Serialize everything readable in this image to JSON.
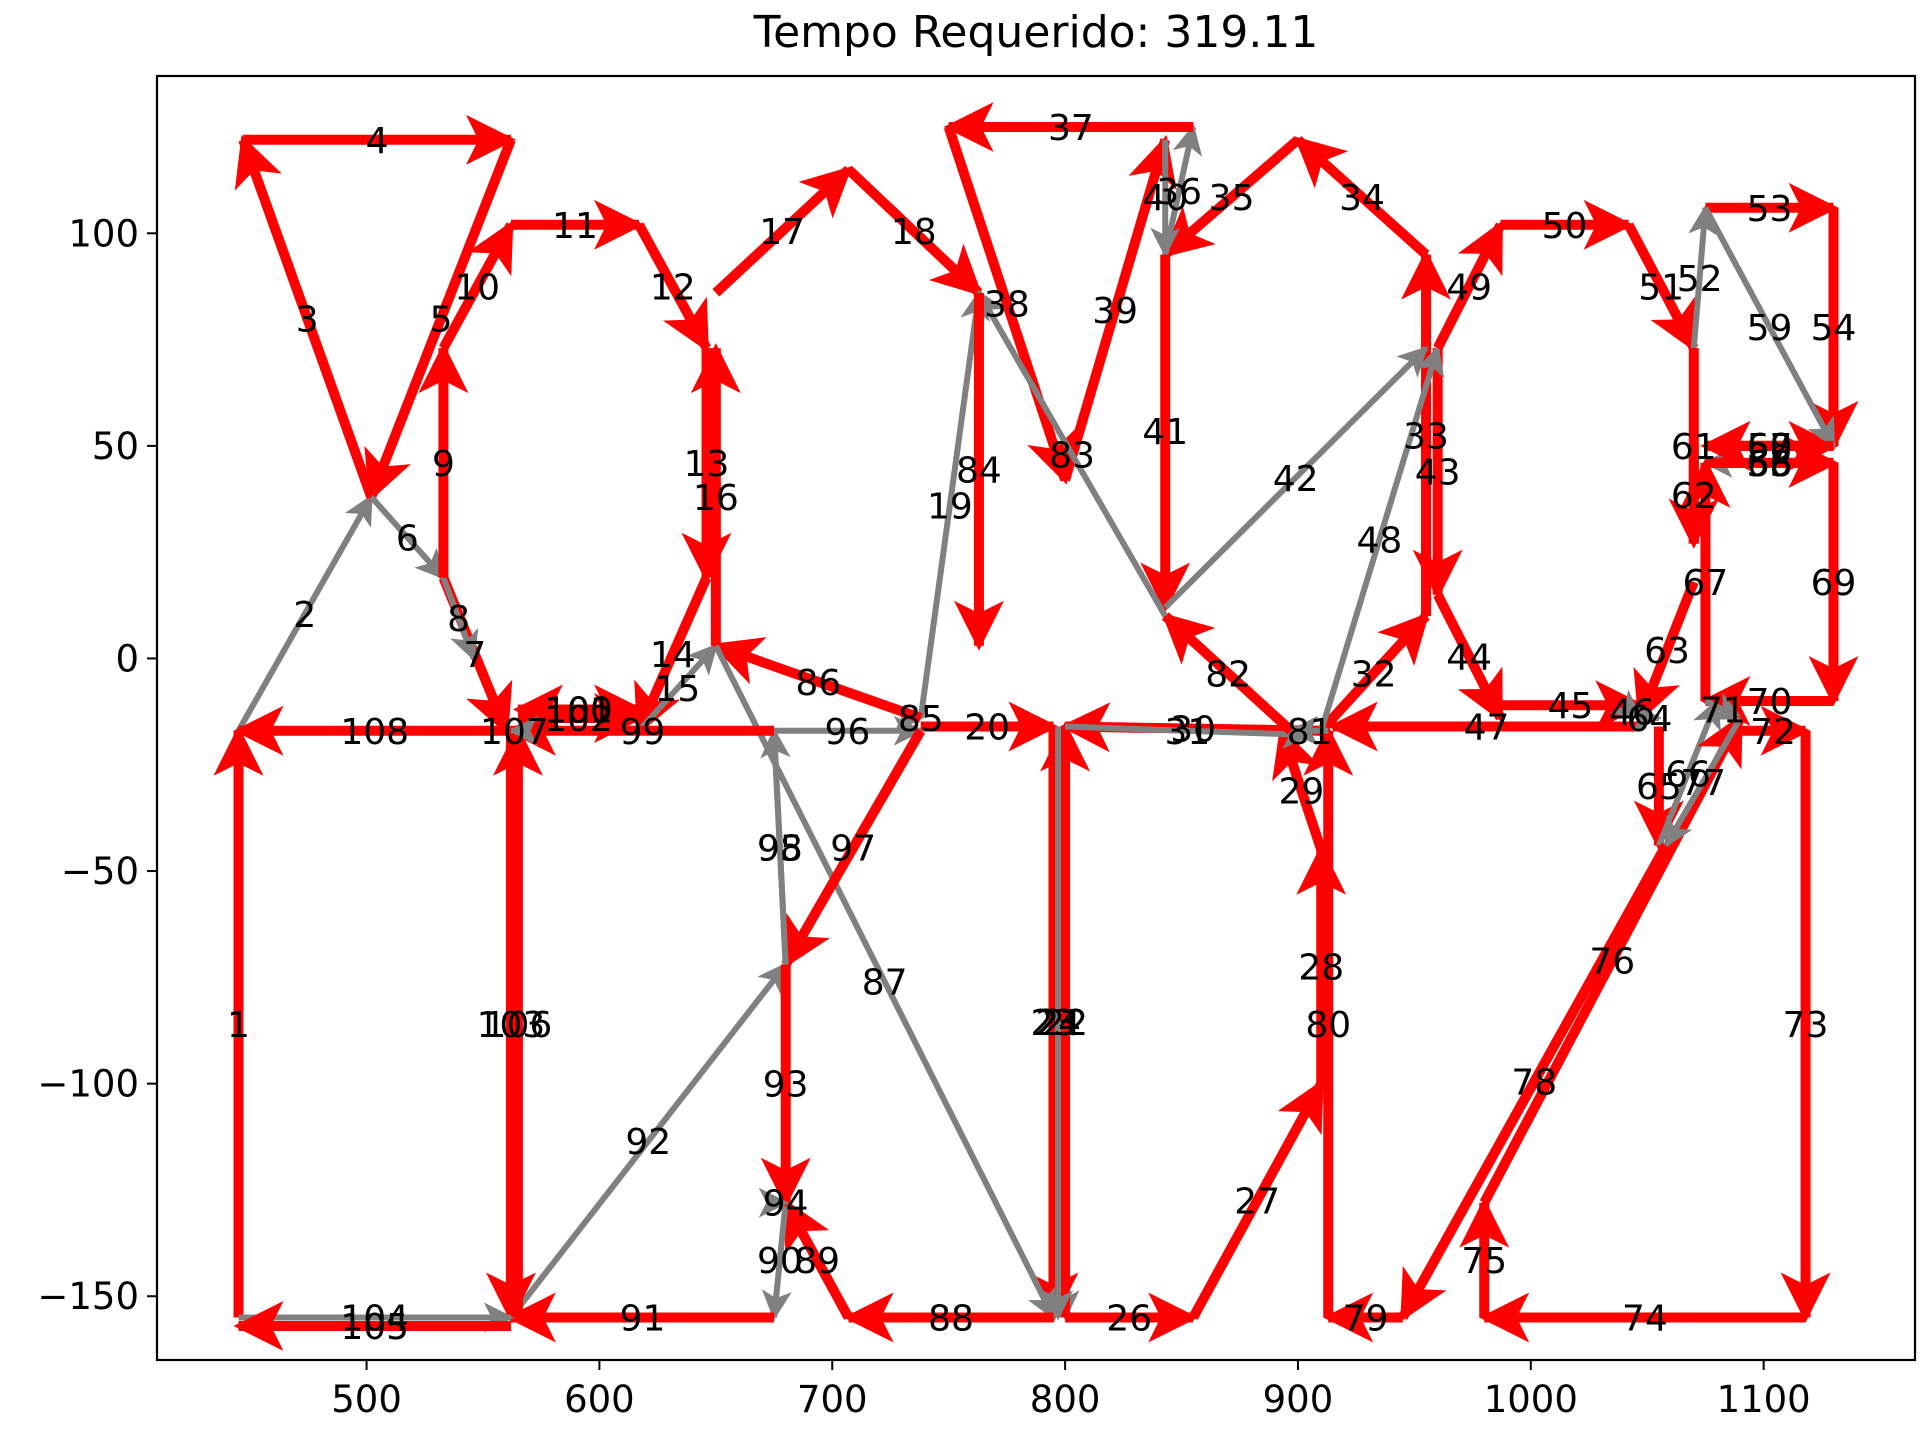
{
  "chart_data": {
    "type": "line",
    "title": "Tempo Requerido: 319.11",
    "xlabel": "",
    "ylabel": "",
    "xlim": [
      410,
      1165
    ],
    "ylim": [
      -165,
      137
    ],
    "xticks": [
      500,
      600,
      700,
      800,
      900,
      1000,
      1100
    ],
    "xtick_labels": [
      "500",
      "600",
      "700",
      "800",
      "900",
      "1000",
      "1100"
    ],
    "yticks": [
      100,
      50,
      0,
      -50,
      -100,
      -150
    ],
    "ytick_labels": [
      "100",
      "50",
      "0",
      "−50",
      "−100",
      "−150"
    ],
    "grid": false,
    "colors": {
      "work": "#ff0000",
      "transit": "#808080"
    },
    "segments": [
      {
        "n": "1",
        "x1": 445,
        "y1": -155,
        "x2": 445,
        "y2": -17,
        "kind": "work"
      },
      {
        "n": "2",
        "x1": 445,
        "y1": -17,
        "x2": 502,
        "y2": 38,
        "kind": "transit"
      },
      {
        "n": "3",
        "x1": 502,
        "y1": 38,
        "x2": 447,
        "y2": 122,
        "kind": "work"
      },
      {
        "n": "4",
        "x1": 447,
        "y1": 122,
        "x2": 562,
        "y2": 122,
        "kind": "work"
      },
      {
        "n": "5",
        "x1": 562,
        "y1": 122,
        "x2": 502,
        "y2": 38,
        "kind": "work"
      },
      {
        "n": "6",
        "x1": 502,
        "y1": 38,
        "x2": 533,
        "y2": 19,
        "kind": "transit"
      },
      {
        "n": "7",
        "x1": 533,
        "y1": 19,
        "x2": 560,
        "y2": -17,
        "kind": "work"
      },
      {
        "n": "8",
        "x1": 533,
        "y1": 19,
        "x2": 546,
        "y2": 0,
        "kind": "transit"
      },
      {
        "n": "9",
        "x1": 533,
        "y1": 19,
        "x2": 533,
        "y2": 73,
        "kind": "work"
      },
      {
        "n": "10",
        "x1": 533,
        "y1": 73,
        "x2": 562,
        "y2": 102,
        "kind": "work"
      },
      {
        "n": "11",
        "x1": 562,
        "y1": 102,
        "x2": 617,
        "y2": 102,
        "kind": "work"
      },
      {
        "n": "12",
        "x1": 617,
        "y1": 102,
        "x2": 646,
        "y2": 73,
        "kind": "work"
      },
      {
        "n": "13",
        "x1": 646,
        "y1": 73,
        "x2": 646,
        "y2": 19,
        "kind": "work"
      },
      {
        "n": "14",
        "x1": 646,
        "y1": 19,
        "x2": 617,
        "y2": -17,
        "kind": "work"
      },
      {
        "n": "15",
        "x1": 617,
        "y1": -17,
        "x2": 650,
        "y2": 3,
        "kind": "transit"
      },
      {
        "n": "16",
        "x1": 650,
        "y1": 3,
        "x2": 650,
        "y2": 73,
        "kind": "work"
      },
      {
        "n": "17",
        "x1": 650,
        "y1": 86,
        "x2": 707,
        "y2": 115,
        "kind": "work"
      },
      {
        "n": "18",
        "x1": 707,
        "y1": 115,
        "x2": 763,
        "y2": 86,
        "kind": "work"
      },
      {
        "n": "19",
        "x1": 738,
        "y1": -14,
        "x2": 763,
        "y2": 86,
        "kind": "transit"
      },
      {
        "n": "20",
        "x1": 738,
        "y1": -16,
        "x2": 795,
        "y2": -16,
        "kind": "work"
      },
      {
        "n": "21",
        "x1": 795,
        "y1": -16,
        "x2": 800,
        "y2": -155,
        "kind": "transit"
      },
      {
        "n": "22",
        "x1": 800,
        "y1": -155,
        "x2": 800,
        "y2": -16,
        "kind": "work"
      },
      {
        "n": "23",
        "x1": 795,
        "y1": -16,
        "x2": 795,
        "y2": -155,
        "kind": "work"
      },
      {
        "n": "24",
        "x1": 797,
        "y1": -16,
        "x2": 797,
        "y2": -155,
        "kind": "transit"
      },
      {
        "n": "26",
        "x1": 800,
        "y1": -155,
        "x2": 855,
        "y2": -155,
        "kind": "work"
      },
      {
        "n": "27",
        "x1": 855,
        "y1": -155,
        "x2": 910,
        "y2": -100,
        "kind": "work"
      },
      {
        "n": "28",
        "x1": 910,
        "y1": -100,
        "x2": 910,
        "y2": -45,
        "kind": "work"
      },
      {
        "n": "29",
        "x1": 910,
        "y1": -45,
        "x2": 893,
        "y2": -17,
        "kind": "work"
      },
      {
        "n": "30",
        "x1": 910,
        "y1": -17,
        "x2": 800,
        "y2": -16,
        "kind": "work"
      },
      {
        "n": "31",
        "x1": 800,
        "y1": -16,
        "x2": 905,
        "y2": -18,
        "kind": "transit"
      },
      {
        "n": "32",
        "x1": 910,
        "y1": -17,
        "x2": 955,
        "y2": 10,
        "kind": "work"
      },
      {
        "n": "33",
        "x1": 955,
        "y1": 10,
        "x2": 955,
        "y2": 95,
        "kind": "work"
      },
      {
        "n": "34",
        "x1": 955,
        "y1": 95,
        "x2": 900,
        "y2": 122,
        "kind": "work"
      },
      {
        "n": "35",
        "x1": 900,
        "y1": 122,
        "x2": 843,
        "y2": 95,
        "kind": "work"
      },
      {
        "n": "36",
        "x1": 843,
        "y1": 95,
        "x2": 855,
        "y2": 125,
        "kind": "transit"
      },
      {
        "n": "37",
        "x1": 855,
        "y1": 125,
        "x2": 750,
        "y2": 125,
        "kind": "work"
      },
      {
        "n": "38",
        "x1": 750,
        "y1": 125,
        "x2": 800,
        "y2": 42,
        "kind": "work"
      },
      {
        "n": "39",
        "x1": 800,
        "y1": 42,
        "x2": 843,
        "y2": 122,
        "kind": "work"
      },
      {
        "n": "40",
        "x1": 843,
        "y1": 122,
        "x2": 843,
        "y2": 95,
        "kind": "transit"
      },
      {
        "n": "41",
        "x1": 843,
        "y1": 95,
        "x2": 843,
        "y2": 12,
        "kind": "work"
      },
      {
        "n": "42",
        "x1": 843,
        "y1": 12,
        "x2": 955,
        "y2": 73,
        "kind": "transit"
      },
      {
        "n": "43",
        "x1": 960,
        "y1": 73,
        "x2": 960,
        "y2": 15,
        "kind": "work"
      },
      {
        "n": "44",
        "x1": 960,
        "y1": 15,
        "x2": 987,
        "y2": -14,
        "kind": "work"
      },
      {
        "n": "45",
        "x1": 987,
        "y1": -11,
        "x2": 1047,
        "y2": -11,
        "kind": "work"
      },
      {
        "n": "46",
        "x1": 1040,
        "y1": -11,
        "x2": 1047,
        "y2": -14,
        "kind": "transit"
      },
      {
        "n": "47",
        "x1": 1047,
        "y1": -16,
        "x2": 915,
        "y2": -16,
        "kind": "work"
      },
      {
        "n": "48",
        "x1": 910,
        "y1": -17,
        "x2": 960,
        "y2": 73,
        "kind": "transit"
      },
      {
        "n": "49",
        "x1": 960,
        "y1": 73,
        "x2": 987,
        "y2": 102,
        "kind": "work"
      },
      {
        "n": "50",
        "x1": 987,
        "y1": 102,
        "x2": 1042,
        "y2": 102,
        "kind": "work"
      },
      {
        "n": "51",
        "x1": 1042,
        "y1": 102,
        "x2": 1070,
        "y2": 73,
        "kind": "work"
      },
      {
        "n": "52",
        "x1": 1070,
        "y1": 73,
        "x2": 1075,
        "y2": 106,
        "kind": "transit"
      },
      {
        "n": "53",
        "x1": 1075,
        "y1": 106,
        "x2": 1130,
        "y2": 106,
        "kind": "work"
      },
      {
        "n": "54",
        "x1": 1130,
        "y1": 106,
        "x2": 1130,
        "y2": 50,
        "kind": "work"
      },
      {
        "n": "55",
        "x1": 1130,
        "y1": 46,
        "x2": 1075,
        "y2": 46,
        "kind": "transit"
      },
      {
        "n": "56",
        "x1": 1075,
        "y1": 46,
        "x2": 1130,
        "y2": 46,
        "kind": "work"
      },
      {
        "n": "57",
        "x1": 1075,
        "y1": 50,
        "x2": 1130,
        "y2": 50,
        "kind": "work"
      },
      {
        "n": "58",
        "x1": 1130,
        "y1": 50,
        "x2": 1075,
        "y2": 50,
        "kind": "work"
      },
      {
        "n": "59",
        "x1": 1075,
        "y1": 106,
        "x2": 1130,
        "y2": 50,
        "kind": "transit"
      },
      {
        "n": "60",
        "x1": 1130,
        "y1": 50,
        "x2": 1075,
        "y2": 50,
        "kind": "work"
      },
      {
        "n": "61",
        "x1": 1070,
        "y1": 73,
        "x2": 1070,
        "y2": 27,
        "kind": "work"
      },
      {
        "n": "62",
        "x1": 1070,
        "y1": 50,
        "x2": 1070,
        "y2": 27,
        "kind": "work"
      },
      {
        "n": "63",
        "x1": 1070,
        "y1": 18,
        "x2": 1047,
        "y2": -14,
        "kind": "work"
      },
      {
        "n": "64",
        "x1": 1047,
        "y1": -14,
        "x2": 1055,
        "y2": -14,
        "kind": "transit"
      },
      {
        "n": "65",
        "x1": 1055,
        "y1": -16,
        "x2": 1055,
        "y2": -44,
        "kind": "work"
      },
      {
        "n": "66",
        "x1": 1055,
        "y1": -44,
        "x2": 1080,
        "y2": -10,
        "kind": "transit"
      },
      {
        "n": "67",
        "x1": 1075,
        "y1": -10,
        "x2": 1075,
        "y2": 46,
        "kind": "work"
      },
      {
        "n": "68",
        "x1": 1075,
        "y1": 46,
        "x2": 1130,
        "y2": 46,
        "kind": "work"
      },
      {
        "n": "69",
        "x1": 1130,
        "y1": 46,
        "x2": 1130,
        "y2": -10,
        "kind": "work"
      },
      {
        "n": "70",
        "x1": 1130,
        "y1": -10,
        "x2": 1075,
        "y2": -10,
        "kind": "work"
      },
      {
        "n": "71",
        "x1": 1075,
        "y1": -10,
        "x2": 1090,
        "y2": -14,
        "kind": "transit"
      },
      {
        "n": "72",
        "x1": 1090,
        "y1": -17,
        "x2": 1118,
        "y2": -17,
        "kind": "work"
      },
      {
        "n": "73",
        "x1": 1118,
        "y1": -17,
        "x2": 1118,
        "y2": -155,
        "kind": "work"
      },
      {
        "n": "74",
        "x1": 1118,
        "y1": -155,
        "x2": 980,
        "y2": -155,
        "kind": "work"
      },
      {
        "n": "75",
        "x1": 980,
        "y1": -155,
        "x2": 980,
        "y2": -128,
        "kind": "work"
      },
      {
        "n": "76",
        "x1": 980,
        "y1": -128,
        "x2": 1090,
        "y2": -14,
        "kind": "work"
      },
      {
        "n": "77",
        "x1": 1090,
        "y1": -14,
        "x2": 1058,
        "y2": -44,
        "kind": "transit"
      },
      {
        "n": "78",
        "x1": 1058,
        "y1": -44,
        "x2": 945,
        "y2": -155,
        "kind": "work"
      },
      {
        "n": "79",
        "x1": 945,
        "y1": -155,
        "x2": 913,
        "y2": -155,
        "kind": "work"
      },
      {
        "n": "80",
        "x1": 913,
        "y1": -155,
        "x2": 913,
        "y2": -17,
        "kind": "work"
      },
      {
        "n": "81",
        "x1": 913,
        "y1": -17,
        "x2": 897,
        "y2": -17,
        "kind": "transit"
      },
      {
        "n": "82",
        "x1": 897,
        "y1": -17,
        "x2": 843,
        "y2": 10,
        "kind": "work"
      },
      {
        "n": "83",
        "x1": 843,
        "y1": 10,
        "x2": 763,
        "y2": 86,
        "kind": "transit"
      },
      {
        "n": "84",
        "x1": 763,
        "y1": 86,
        "x2": 763,
        "y2": 3,
        "kind": "work"
      },
      {
        "n": "85",
        "x1": 738,
        "y1": -14,
        "x2": 738,
        "y2": -14,
        "kind": "transit"
      },
      {
        "n": "86",
        "x1": 738,
        "y1": -14,
        "x2": 650,
        "y2": 3,
        "kind": "work"
      },
      {
        "n": "87",
        "x1": 650,
        "y1": 3,
        "x2": 795,
        "y2": -155,
        "kind": "transit"
      },
      {
        "n": "88",
        "x1": 795,
        "y1": -155,
        "x2": 707,
        "y2": -155,
        "kind": "work"
      },
      {
        "n": "89",
        "x1": 707,
        "y1": -155,
        "x2": 680,
        "y2": -128,
        "kind": "work"
      },
      {
        "n": "90",
        "x1": 680,
        "y1": -128,
        "x2": 675,
        "y2": -155,
        "kind": "transit"
      },
      {
        "n": "91",
        "x1": 675,
        "y1": -155,
        "x2": 562,
        "y2": -155,
        "kind": "work"
      },
      {
        "n": "92",
        "x1": 562,
        "y1": -155,
        "x2": 680,
        "y2": -72,
        "kind": "transit"
      },
      {
        "n": "93",
        "x1": 680,
        "y1": -72,
        "x2": 680,
        "y2": -128,
        "kind": "work"
      },
      {
        "n": "94",
        "x1": 680,
        "y1": -128,
        "x2": 680,
        "y2": -128,
        "kind": "transit"
      },
      {
        "n": "95",
        "x1": 680,
        "y1": -72,
        "x2": 675,
        "y2": -17,
        "kind": "transit"
      },
      {
        "n": "96",
        "x1": 675,
        "y1": -17,
        "x2": 738,
        "y2": -17,
        "kind": "transit"
      },
      {
        "n": "97",
        "x1": 738,
        "y1": -17,
        "x2": 680,
        "y2": -72,
        "kind": "work"
      },
      {
        "n": "98",
        "x1": 680,
        "y1": -72,
        "x2": 675,
        "y2": -17,
        "kind": "transit"
      },
      {
        "n": "99",
        "x1": 675,
        "y1": -17,
        "x2": 562,
        "y2": -17,
        "kind": "work"
      },
      {
        "n": "100",
        "x1": 565,
        "y1": -12,
        "x2": 617,
        "y2": -12,
        "kind": "work"
      },
      {
        "n": "101",
        "x1": 617,
        "y1": -12,
        "x2": 565,
        "y2": -12,
        "kind": "work"
      },
      {
        "n": "102",
        "x1": 565,
        "y1": -14,
        "x2": 617,
        "y2": -14,
        "kind": "work"
      },
      {
        "n": "103",
        "x1": 562,
        "y1": -17,
        "x2": 562,
        "y2": -155,
        "kind": "work"
      },
      {
        "n": "104",
        "x1": 445,
        "y1": -155,
        "x2": 562,
        "y2": -155,
        "kind": "transit"
      },
      {
        "n": "105",
        "x1": 562,
        "y1": -157,
        "x2": 445,
        "y2": -157,
        "kind": "work"
      },
      {
        "n": "106",
        "x1": 565,
        "y1": -155,
        "x2": 565,
        "y2": -17,
        "kind": "work"
      },
      {
        "n": "107",
        "x1": 565,
        "y1": -17,
        "x2": 562,
        "y2": -17,
        "kind": "transit"
      },
      {
        "n": "108",
        "x1": 562,
        "y1": -17,
        "x2": 445,
        "y2": -17,
        "kind": "work"
      }
    ]
  }
}
